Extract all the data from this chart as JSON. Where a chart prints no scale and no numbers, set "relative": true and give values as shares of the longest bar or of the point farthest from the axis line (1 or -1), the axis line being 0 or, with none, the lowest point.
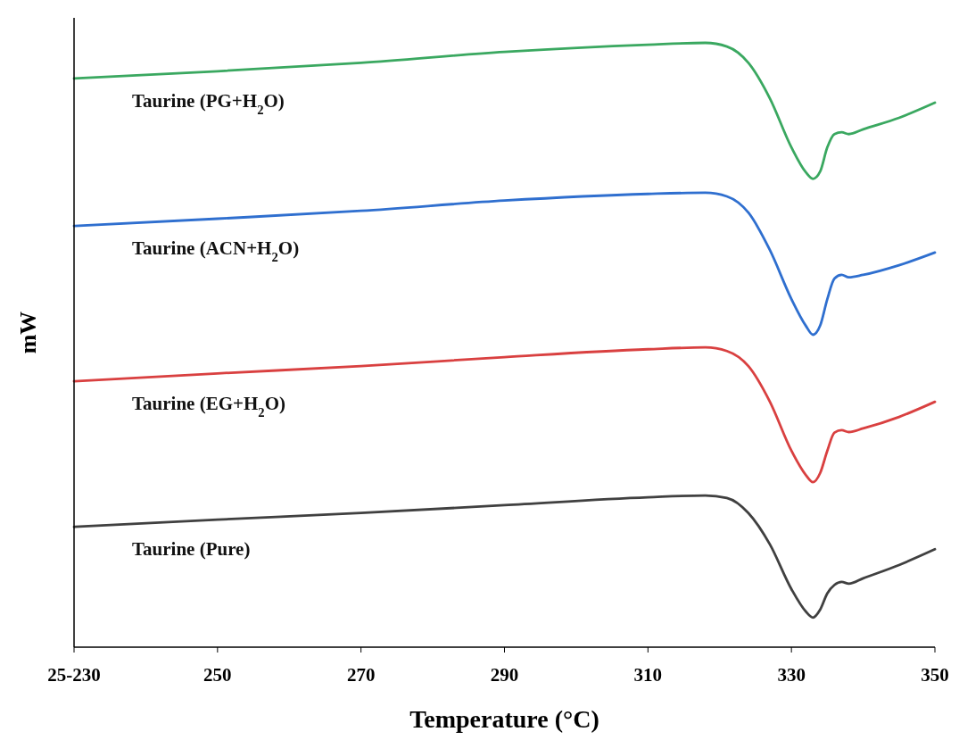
{
  "chart_data": {
    "type": "line",
    "xlabel": "Temperature (°C)",
    "ylabel": "mW",
    "relative": true,
    "grid": false,
    "line_style": "solid",
    "x": [
      230,
      250,
      270,
      290,
      310,
      318,
      321,
      324,
      327,
      330,
      332,
      333,
      334,
      335,
      336,
      337,
      338,
      340,
      345,
      350
    ],
    "xlim": [
      230,
      350
    ],
    "xticks": [
      {
        "value": 230,
        "label": "25-230"
      },
      250,
      270,
      290,
      310,
      330,
      350
    ],
    "series": [
      {
        "name": "Taurine (PG+H$_{2}$O)",
        "color": "#3aa860",
        "values": [
          0.941,
          0.953,
          0.967,
          0.985,
          0.997,
          1,
          0.994,
          0.967,
          0.908,
          0.827,
          0.786,
          0.775,
          0.787,
          0.827,
          0.849,
          0.852,
          0.849,
          0.857,
          0.876,
          0.901
        ]
      },
      {
        "name": "Taurine (ACN+H$_{2}$O)",
        "color": "#2f6fcf",
        "values": [
          0.697,
          0.709,
          0.722,
          0.739,
          0.75,
          0.752,
          0.746,
          0.719,
          0.657,
          0.576,
          0.532,
          0.517,
          0.532,
          0.576,
          0.61,
          0.616,
          0.612,
          0.616,
          0.632,
          0.653
        ]
      },
      {
        "name": "Taurine (EG+H$_{2}$O)",
        "color": "#d94040",
        "values": [
          0.44,
          0.453,
          0.465,
          0.48,
          0.493,
          0.496,
          0.49,
          0.465,
          0.406,
          0.325,
          0.285,
          0.273,
          0.288,
          0.325,
          0.355,
          0.359,
          0.356,
          0.362,
          0.381,
          0.406
        ]
      },
      {
        "name": "Taurine (Pure)",
        "color": "#404040",
        "values": [
          0.199,
          0.211,
          0.222,
          0.235,
          0.248,
          0.251,
          0.247,
          0.222,
          0.17,
          0.096,
          0.059,
          0.049,
          0.062,
          0.089,
          0.103,
          0.108,
          0.105,
          0.114,
          0.136,
          0.162
        ]
      }
    ]
  }
}
